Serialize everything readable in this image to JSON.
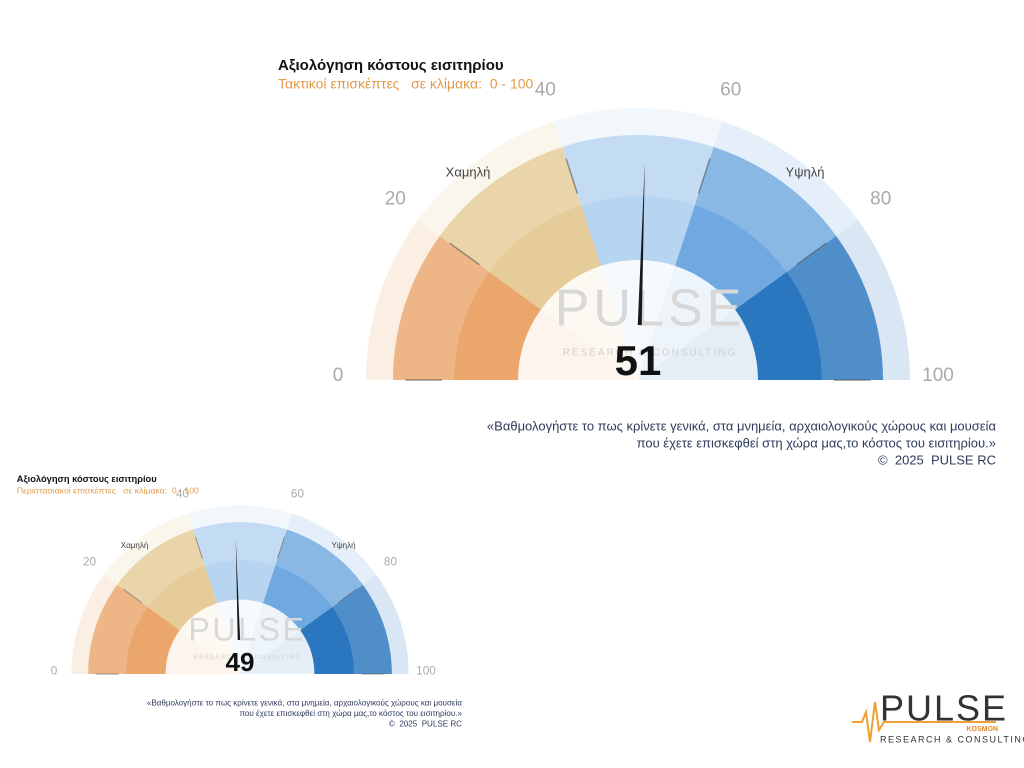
{
  "chart_data": [
    {
      "type": "gauge",
      "title": "Αξιολόγηση κόστους εισιτηρίου",
      "subtitle": "Τακτικοί επισκέπτες   σε κλίμακα:  0 - 100",
      "value": 51,
      "ylim": [
        0,
        100
      ],
      "yticks": [
        0,
        20,
        40,
        60,
        80,
        100
      ],
      "band_colors": [
        "#eba66c",
        "#e6cc98",
        "#b7d5f1",
        "#6fa9e0",
        "#2a76bf"
      ],
      "needle_color": "#1a1a1a",
      "low_label": "Χαμηλή",
      "high_label": "Υψηλή",
      "note_lines": [
        "«Βαθμολογήστε το πως κρίνετε γενικά, στα μνημεία, αρχαιολογικούς χώρους και μουσεία",
        "που έχετε επισκεφθεί στη χώρα μας,το κόστος του εισιτηρίου.»"
      ],
      "copyright": "©  2025  PULSE RC"
    },
    {
      "type": "gauge",
      "title": "Αξιολόγηση κόστους εισιτηρίου",
      "subtitle": "Περιστασιακοί επισκέπτες   σε κλίμακα:  0 - 100",
      "value": 49,
      "ylim": [
        0,
        100
      ],
      "yticks": [
        0,
        20,
        40,
        60,
        80,
        100
      ],
      "band_colors": [
        "#eba66c",
        "#e6cc98",
        "#b7d5f1",
        "#6fa9e0",
        "#2a76bf"
      ],
      "needle_color": "#1a1a1a",
      "low_label": "Χαμηλή",
      "high_label": "Υψηλή",
      "note_lines": [
        "«Βαθμολογήστε το πως κρίνετε γενικά, στα μνημεία, αρχαιολογικούς χώρους και μουσεία",
        "που έχετε επισκεφθεί στη χώρα μας,το κόστος του εισιτηρίου.»"
      ],
      "copyright": "©  2025  PULSE RC"
    }
  ],
  "logo": {
    "name": "PULSE",
    "sub": "KOSMON",
    "tagline": "RESEARCH & CONSULTING"
  }
}
